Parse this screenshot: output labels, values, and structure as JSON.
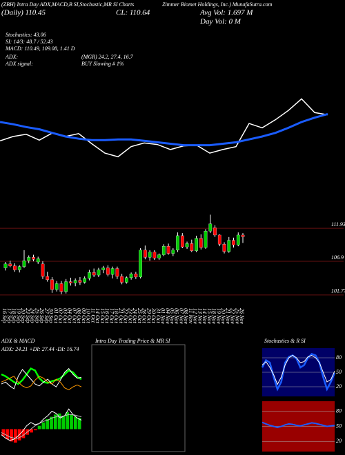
{
  "header": {
    "title": "(ZBH) Intra Day ADX,MACD,B SI,Stochastic,MR SI Charts",
    "company": "Zimmer Biomet Holdings, Inc.) MunafaSutra.com",
    "daily": "(Daily) 110.45",
    "close": "CL: 110.64",
    "avg_vol": "Avg Vol: 1.697 M",
    "day_vol": "Day Vol: 0  M",
    "stochastics": "Stochastics: 43.06",
    "si": "SI: 14/3: 48.7 / 52.43",
    "macd": "MACD: 110.49, 109.08, 1.41 D",
    "adx": "ADX:",
    "adx_values": "(MGR) 24.2, 27.4, 16.7",
    "adx_signal": "ADX  signal:",
    "adx_signal_value": "BUY Slowing # 1%"
  },
  "chart_data": [
    {
      "type": "candlestick",
      "categories": [
        "16 Sep",
        "17 Sep",
        "18 Sep",
        "19 Sep",
        "20 Sep",
        "23 Sep",
        "24 Sep",
        "25 Sep",
        "26 Sep",
        "27 Sep",
        "30 Sep",
        "01 Oct",
        "02 Oct",
        "03 Oct",
        "04 Oct",
        "07 Oct",
        "08 Oct",
        "09 Oct",
        "10 Oct",
        "11 Oct",
        "14 Oct",
        "15 Oct",
        "16 Oct",
        "17 Oct",
        "18 Oct",
        "21 Oct",
        "22 Oct",
        "23 Oct",
        "24 Oct",
        "25 Oct",
        "28 Oct",
        "29 Oct",
        "30 Oct",
        "31 Oct",
        "01 Nov",
        "04 Nov",
        "05 Nov",
        "06 Nov",
        "07 Nov",
        "08 Nov",
        "11 Nov",
        "12 Nov",
        "13 Nov",
        "14 Nov",
        "15 Nov",
        "18 Nov",
        "19 Nov",
        "20 Nov",
        "21 Nov",
        "22 Nov",
        "25 Nov",
        "26 Nov"
      ],
      "open": [
        105.9,
        106.5,
        106.2,
        105.6,
        106.1,
        107.0,
        107.5,
        106.8,
        106.5,
        104.6,
        104.1,
        102.6,
        103.5,
        102.3,
        103.8,
        103.6,
        104.0,
        103.7,
        104.3,
        105.2,
        104.8,
        105.6,
        105.9,
        104.9,
        105.8,
        104.6,
        103.7,
        104.4,
        105.0,
        104.5,
        108.6,
        107.5,
        108.3,
        107.4,
        107.9,
        109.2,
        108.1,
        108.6,
        110.8,
        109.1,
        109.6,
        108.5,
        110.4,
        109.0,
        111.5,
        112.0,
        110.9,
        109.5,
        108.4,
        110.1,
        109.4,
        110.9
      ],
      "high": [
        106.8,
        107.0,
        106.6,
        106.3,
        108.6,
        107.8,
        107.9,
        107.6,
        106.9,
        105.3,
        104.5,
        103.9,
        103.9,
        104.2,
        104.4,
        104.3,
        104.5,
        104.6,
        105.6,
        105.8,
        105.9,
        106.2,
        106.3,
        106.1,
        106.1,
        105.0,
        104.6,
        105.2,
        105.3,
        108.9,
        109.3,
        108.6,
        108.6,
        108.1,
        109.5,
        109.6,
        108.9,
        111.3,
        111.2,
        109.9,
        110.2,
        110.8,
        111.0,
        111.8,
        114.0,
        112.4,
        111.0,
        109.8,
        110.6,
        110.5,
        111.3,
        111.2
      ],
      "low": [
        105.5,
        106.0,
        105.3,
        105.2,
        105.9,
        106.6,
        106.9,
        106.5,
        104.2,
        103.8,
        102.1,
        102.3,
        101.9,
        102.0,
        103.2,
        103.1,
        103.3,
        103.5,
        104.0,
        104.5,
        104.5,
        105.1,
        104.6,
        104.3,
        104.2,
        103.4,
        103.5,
        104.1,
        104.2,
        104.3,
        107.2,
        107.0,
        107.1,
        107.1,
        107.7,
        107.9,
        107.7,
        108.3,
        108.9,
        108.8,
        108.3,
        108.3,
        108.7,
        108.8,
        111.2,
        110.6,
        109.2,
        108.1,
        108.2,
        109.0,
        109.2,
        109.7
      ],
      "close": [
        106.5,
        106.2,
        105.6,
        106.1,
        107.0,
        107.5,
        107.2,
        107.3,
        104.6,
        104.1,
        102.6,
        103.5,
        102.3,
        103.8,
        103.6,
        104.0,
        103.7,
        104.3,
        105.2,
        104.8,
        105.6,
        105.9,
        104.9,
        105.8,
        104.6,
        103.7,
        104.4,
        105.0,
        104.5,
        108.6,
        107.5,
        108.3,
        107.4,
        107.9,
        109.2,
        108.1,
        108.6,
        110.8,
        109.1,
        109.6,
        108.5,
        110.4,
        109.0,
        111.5,
        112.6,
        110.9,
        109.5,
        108.4,
        110.1,
        109.4,
        110.9,
        110.64
      ],
      "up_color": "#00cc00",
      "down_color": "#ff0000",
      "grid_color": "#661111",
      "ylim": [
        100.5,
        115.2
      ],
      "yticks": [
        111.93,
        106.9,
        101.77
      ]
    },
    {
      "type": "line",
      "ylim": [
        0,
        100
      ],
      "series": [
        {
          "color": "#ffffff",
          "width": 1.5,
          "values": [
            34,
            40,
            43,
            35,
            45,
            40,
            44,
            30,
            17,
            12,
            26,
            31,
            29,
            22,
            27,
            28,
            17,
            22,
            26,
            58,
            52,
            63,
            76,
            92,
            73,
            70
          ]
        },
        {
          "color": "#1a5cff",
          "width": 3,
          "values": [
            60,
            57,
            53,
            50,
            45,
            40,
            37,
            35,
            35,
            36,
            36,
            34,
            32,
            30,
            28,
            28,
            28,
            30,
            32,
            36,
            40,
            45,
            52,
            60,
            66,
            71
          ]
        }
      ]
    },
    {
      "type": "line",
      "title": "ADX  & MACD",
      "subtitle": "ADX: 24.21  +DI: 27.44  -DI: 16.74",
      "ylim": [
        0,
        50
      ],
      "series": [
        {
          "color": "#00ff00",
          "width": 2.5,
          "values": [
            30,
            28,
            25,
            22,
            20,
            24,
            30,
            36,
            34,
            26,
            22,
            21,
            23,
            24,
            26,
            30,
            34,
            32,
            27,
            25
          ]
        },
        {
          "color": "#ffffff",
          "width": 1,
          "values": [
            20,
            22,
            18,
            15,
            28,
            35,
            30,
            25,
            20,
            18,
            22,
            25,
            20,
            17,
            24,
            32,
            36,
            30,
            26,
            27
          ]
        },
        {
          "color": "#ff9900",
          "width": 1,
          "values": [
            22,
            24,
            26,
            28,
            22,
            18,
            16,
            18,
            24,
            28,
            26,
            22,
            20,
            25,
            22,
            16,
            14,
            17,
            19,
            17
          ]
        }
      ]
    },
    {
      "type": "bar",
      "values": [
        -0.6,
        -0.9,
        -1.1,
        -1.2,
        -1.0,
        -0.8,
        -0.5,
        -0.3,
        -0.1,
        0.3,
        0.6,
        0.9,
        1.1,
        1.3,
        1.4,
        1.2,
        1.5,
        1.3,
        1.1,
        1.0
      ],
      "up_color": "#00cc00",
      "down_color": "#ff0000",
      "ylim": [
        -2,
        2
      ],
      "series": [
        {
          "color": "#ffffff",
          "width": 1,
          "values": [
            -0.5,
            -0.8,
            -1.0,
            -0.9,
            -0.6,
            -0.2,
            0.3,
            0.6,
            0.4,
            0.5,
            0.9,
            1.2,
            1.6,
            1.4,
            1.0,
            1.2,
            1.8,
            1.3,
            1.0,
            0.8
          ]
        },
        {
          "color": "#bbbbbb",
          "width": 1,
          "values": [
            -0.3,
            -0.5,
            -0.7,
            -0.8,
            -0.8,
            -0.6,
            -0.3,
            0,
            0.3,
            0.5,
            0.7,
            0.8,
            1.0,
            1.1,
            1.1,
            1.2,
            1.3,
            1.3,
            1.2,
            1.1
          ]
        }
      ]
    },
    {
      "type": "line",
      "title": "Intra  Day Trading Price  & MR SI",
      "ylim": [
        0,
        100
      ],
      "series": []
    },
    {
      "type": "line",
      "title": "Stochastics  & R SI",
      "background": "#000066",
      "ylim": [
        0,
        100
      ],
      "yticks": [
        20,
        50,
        80
      ],
      "series": [
        {
          "color": "#1a5cff",
          "width": 2.5,
          "values": [
            60,
            75,
            70,
            40,
            15,
            30,
            70,
            82,
            85,
            78,
            60,
            65,
            80,
            88,
            85,
            70,
            40,
            15,
            30,
            48.7
          ]
        },
        {
          "color": "#ffffff",
          "width": 1,
          "values": [
            65,
            72,
            60,
            45,
            25,
            40,
            65,
            80,
            85,
            80,
            70,
            72,
            82,
            85,
            80,
            70,
            50,
            30,
            35,
            52.43
          ]
        }
      ]
    },
    {
      "type": "line",
      "background": "#990000",
      "ylim": [
        0,
        100
      ],
      "yticks": [
        20,
        50,
        80
      ],
      "series": [
        {
          "color": "#1a5cff",
          "width": 2,
          "values": [
            58,
            55,
            52,
            50,
            48,
            50,
            53,
            55,
            54,
            52,
            51,
            53,
            55,
            57,
            56,
            54,
            52,
            50,
            51,
            52
          ]
        }
      ]
    }
  ]
}
